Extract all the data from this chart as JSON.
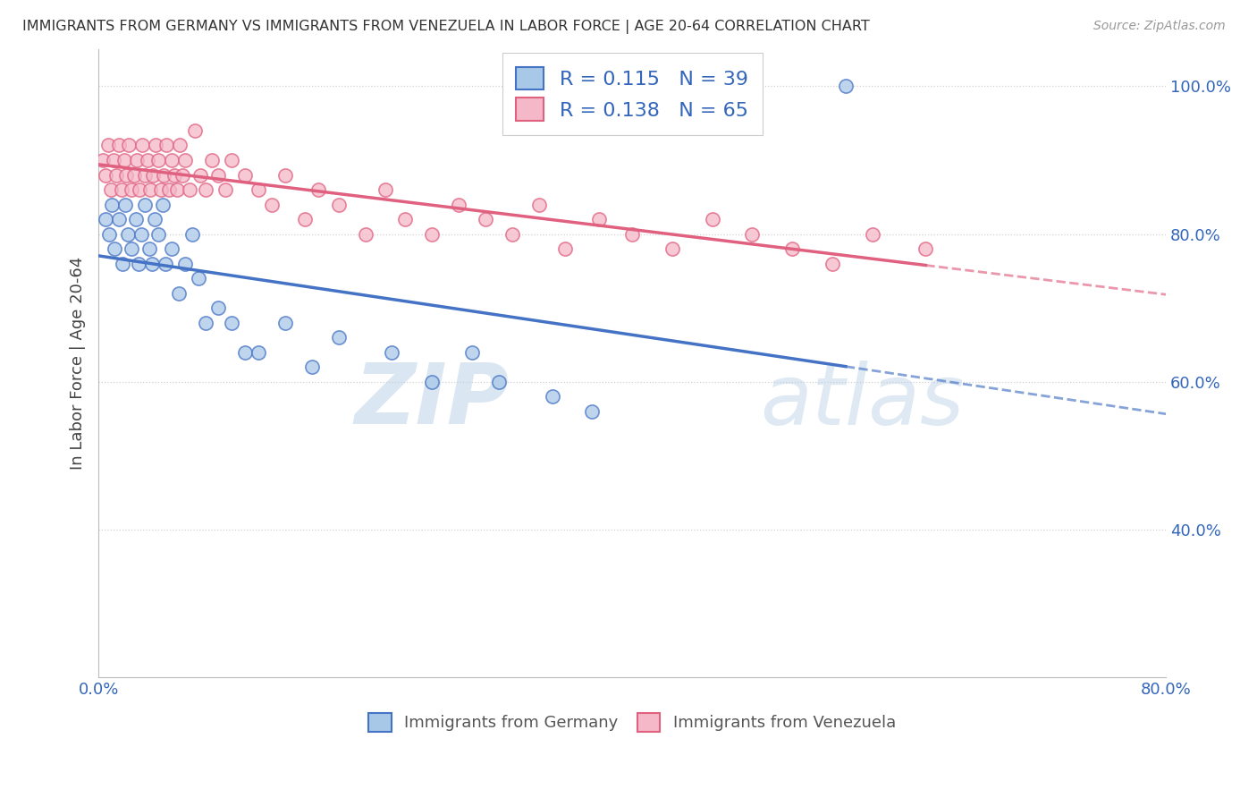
{
  "title": "IMMIGRANTS FROM GERMANY VS IMMIGRANTS FROM VENEZUELA IN LABOR FORCE | AGE 20-64 CORRELATION CHART",
  "source": "Source: ZipAtlas.com",
  "ylabel": "In Labor Force | Age 20-64",
  "xlim": [
    0.0,
    0.8
  ],
  "ylim": [
    0.2,
    1.05
  ],
  "germany_color": "#a8c8e8",
  "venezuela_color": "#f4b8c8",
  "germany_edge_color": "#4472c4",
  "venezuela_edge_color": "#e06080",
  "germany_R": 0.115,
  "germany_N": 39,
  "venezuela_R": 0.138,
  "venezuela_N": 65,
  "germany_x": [
    0.005,
    0.008,
    0.01,
    0.012,
    0.015,
    0.018,
    0.02,
    0.022,
    0.025,
    0.028,
    0.03,
    0.032,
    0.035,
    0.038,
    0.04,
    0.042,
    0.045,
    0.048,
    0.05,
    0.055,
    0.06,
    0.065,
    0.07,
    0.075,
    0.08,
    0.09,
    0.1,
    0.11,
    0.12,
    0.14,
    0.16,
    0.18,
    0.22,
    0.25,
    0.28,
    0.3,
    0.34,
    0.37,
    0.56
  ],
  "germany_y": [
    0.82,
    0.8,
    0.84,
    0.78,
    0.82,
    0.76,
    0.84,
    0.8,
    0.78,
    0.82,
    0.76,
    0.8,
    0.84,
    0.78,
    0.76,
    0.82,
    0.8,
    0.84,
    0.76,
    0.78,
    0.72,
    0.76,
    0.8,
    0.74,
    0.68,
    0.7,
    0.68,
    0.64,
    0.64,
    0.68,
    0.62,
    0.66,
    0.64,
    0.6,
    0.64,
    0.6,
    0.58,
    0.56,
    1.0
  ],
  "venezuela_x": [
    0.003,
    0.005,
    0.007,
    0.009,
    0.011,
    0.013,
    0.015,
    0.017,
    0.019,
    0.021,
    0.023,
    0.025,
    0.027,
    0.029,
    0.031,
    0.033,
    0.035,
    0.037,
    0.039,
    0.041,
    0.043,
    0.045,
    0.047,
    0.049,
    0.051,
    0.053,
    0.055,
    0.057,
    0.059,
    0.061,
    0.063,
    0.065,
    0.068,
    0.072,
    0.076,
    0.08,
    0.085,
    0.09,
    0.095,
    0.1,
    0.11,
    0.12,
    0.13,
    0.14,
    0.155,
    0.165,
    0.18,
    0.2,
    0.215,
    0.23,
    0.25,
    0.27,
    0.29,
    0.31,
    0.33,
    0.35,
    0.375,
    0.4,
    0.43,
    0.46,
    0.49,
    0.52,
    0.55,
    0.58,
    0.62
  ],
  "venezuela_y": [
    0.9,
    0.88,
    0.92,
    0.86,
    0.9,
    0.88,
    0.92,
    0.86,
    0.9,
    0.88,
    0.92,
    0.86,
    0.88,
    0.9,
    0.86,
    0.92,
    0.88,
    0.9,
    0.86,
    0.88,
    0.92,
    0.9,
    0.86,
    0.88,
    0.92,
    0.86,
    0.9,
    0.88,
    0.86,
    0.92,
    0.88,
    0.9,
    0.86,
    0.94,
    0.88,
    0.86,
    0.9,
    0.88,
    0.86,
    0.9,
    0.88,
    0.86,
    0.84,
    0.88,
    0.82,
    0.86,
    0.84,
    0.8,
    0.86,
    0.82,
    0.8,
    0.84,
    0.82,
    0.8,
    0.84,
    0.78,
    0.82,
    0.8,
    0.78,
    0.82,
    0.8,
    0.78,
    0.76,
    0.8,
    0.78
  ],
  "germany_line_color": "#4472c4",
  "venezuela_line_color": "#e06080",
  "watermark_zip": "ZIP",
  "watermark_atlas": "atlas",
  "dot_size": 120,
  "grid_color": "#cccccc",
  "background_color": "#ffffff"
}
